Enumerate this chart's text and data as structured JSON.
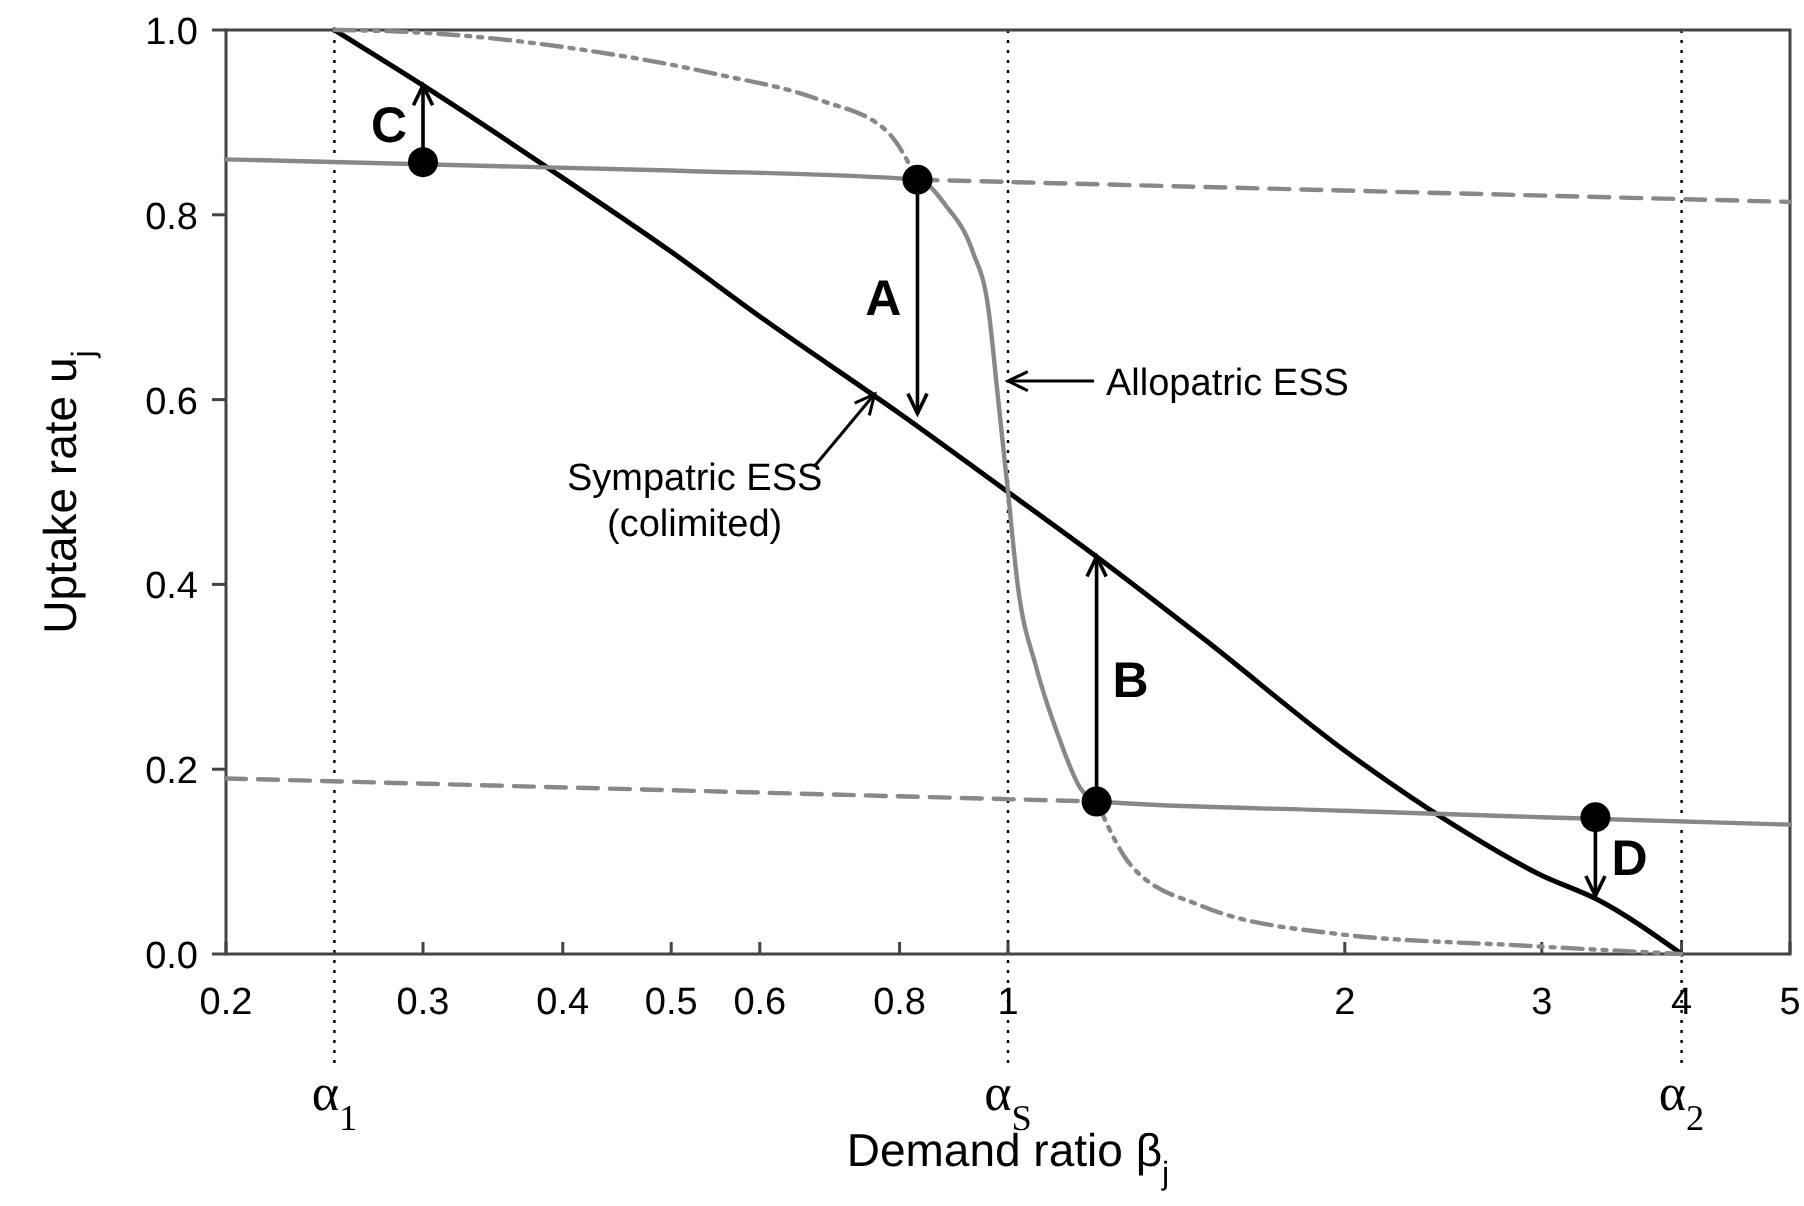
{
  "chart_data": {
    "type": "line",
    "xlabel": "Demand ratio β$_{j}$",
    "ylabel": "Uptake rate u$_{j}$",
    "log": "x",
    "xlim": [
      0.2,
      5
    ],
    "xticks": [
      0.2,
      0.3,
      0.4,
      0.5,
      0.6,
      0.8,
      1,
      2,
      3,
      4,
      5
    ],
    "ylim": [
      0,
      1
    ],
    "yticks": [
      {
        "value": 0,
        "label": "0.0"
      },
      {
        "value": 0.2,
        "label": "0.2"
      },
      {
        "value": 0.4,
        "label": "0.4"
      },
      {
        "value": 0.6,
        "label": "0.6"
      },
      {
        "value": 0.8,
        "label": "0.8"
      },
      {
        "value": 1,
        "label": "1.0"
      }
    ],
    "grid": false,
    "series": [
      {
        "color": "#000000",
        "line_style": "solid",
        "x": [
          0.25,
          0.3,
          0.4,
          0.5,
          0.6,
          0.8,
          1,
          1.2,
          1.5,
          2,
          2.5,
          3,
          3.35,
          4
        ],
        "values": [
          1,
          0.94,
          0.84,
          0.76,
          0.69,
          0.585,
          0.5,
          0.43,
          0.34,
          0.22,
          0.14,
          0.085,
          0.06,
          0
        ]
      },
      {
        "type": "line",
        "color": "#888888",
        "line_style": "solid",
        "x": [
          0.2,
          0.5,
          0.83,
          0.88,
          0.93,
          0.96,
          0.98,
          1,
          1.02,
          1.06,
          1.11,
          1.16,
          1.2,
          2,
          3,
          5
        ],
        "values": [
          0.86,
          0.848,
          0.838,
          0.81,
          0.76,
          0.7,
          0.6,
          0.5,
          0.4,
          0.31,
          0.235,
          0.18,
          0.165,
          0.155,
          0.148,
          0.14
        ]
      },
      {
        "type": "line",
        "color": "#888888",
        "line_style": "dashed",
        "x": [
          0.83,
          5
        ],
        "values": [
          0.838,
          0.814
        ]
      },
      {
        "type": "line",
        "color": "#888888",
        "line_style": "dashed",
        "x": [
          0.2,
          1.2
        ],
        "values": [
          0.19,
          0.165
        ]
      },
      {
        "type": "line",
        "color": "#888888",
        "line_style": "dashdot",
        "x": [
          0.25,
          0.29,
          0.42,
          0.55,
          0.68,
          0.78,
          0.83
        ],
        "values": [
          1,
          0.998,
          0.978,
          0.952,
          0.924,
          0.89,
          0.838
        ]
      },
      {
        "type": "line",
        "color": "#888888",
        "line_style": "dashdot",
        "x": [
          1.2,
          1.29,
          1.49,
          1.96,
          2.9,
          4
        ],
        "values": [
          0.165,
          0.095,
          0.052,
          0.022,
          0.009,
          0
        ]
      },
      {
        "type": "scatter",
        "color": "#000000",
        "marker": "circle",
        "x": [
          0.3,
          0.83,
          1.2,
          3.35
        ],
        "values": [
          0.857,
          0.838,
          0.165,
          0.148
        ]
      }
    ],
    "ref_lines": [
      {
        "axis": "x",
        "value": 0.25,
        "label": "α$_{1}$",
        "line_style": "dotted",
        "color": "#000000"
      },
      {
        "axis": "x",
        "value": 1,
        "label": "α$_{S}$",
        "line_style": "dotted",
        "color": "#000000"
      },
      {
        "axis": "x",
        "value": 4,
        "label": "α$_{2}$",
        "line_style": "dotted",
        "color": "#000000"
      }
    ],
    "annotations": [
      {
        "text": "C",
        "x": 0.3,
        "y": 0.94
      },
      {
        "text": "A",
        "x": 0.83,
        "y": 0.585
      },
      {
        "text": "B",
        "x": 1.2,
        "y": 0.43
      },
      {
        "text": "D",
        "x": 3.35,
        "y": 0.063
      },
      {
        "text": "Allopatric ESS",
        "x": 1.0,
        "y": 0.62
      },
      {
        "text": "Sympatric ESS\n(colimited)",
        "x": 0.76,
        "y": 0.606
      }
    ]
  }
}
